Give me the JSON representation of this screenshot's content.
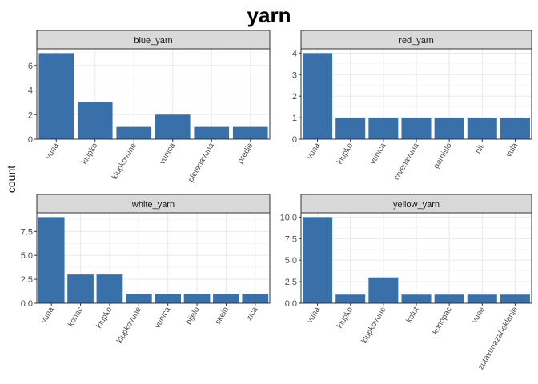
{
  "chart_data": {
    "type": "bar",
    "title": "yarn",
    "ylabel": "count",
    "xlabel": "",
    "bar_color": "#3A70AA",
    "panels": [
      {
        "name": "blue_yarn",
        "categories": [
          "vuna",
          "klupko",
          "klupkovune",
          "vunica",
          "pletenavuna",
          "predje"
        ],
        "values": [
          7,
          3,
          1,
          2,
          1,
          1
        ],
        "ylim": [
          0,
          7.35
        ],
        "yticks": [
          0,
          2,
          4,
          6
        ],
        "ytick_labels": [
          "0",
          "2",
          "4",
          "6"
        ]
      },
      {
        "name": "red_yarn",
        "categories": [
          "vuna",
          "klupko",
          "vunica",
          "crvenavuna",
          "garnislo",
          "nit.",
          "vula"
        ],
        "values": [
          4,
          1,
          1,
          1,
          1,
          1,
          1
        ],
        "ylim": [
          0,
          4.2
        ],
        "yticks": [
          0,
          1,
          2,
          3,
          4
        ],
        "ytick_labels": [
          "0",
          "1",
          "2",
          "3",
          "4"
        ]
      },
      {
        "name": "white_yarn",
        "categories": [
          "vuna",
          "konac",
          "klupko",
          "klupkovune",
          "vunica",
          "bijelo",
          "skein",
          "zica"
        ],
        "values": [
          9,
          3,
          3,
          1,
          1,
          1,
          1,
          1
        ],
        "ylim": [
          0,
          9.45
        ],
        "yticks": [
          0,
          2.5,
          5,
          7.5
        ],
        "ytick_labels": [
          "0.0",
          "2.5",
          "5.0",
          "7.5"
        ]
      },
      {
        "name": "yellow_yarn",
        "categories": [
          "vuna",
          "klupko",
          "klupkovune",
          "kolut",
          "konopac",
          "vune",
          "zutavunazaheklanje"
        ],
        "values": [
          10,
          1,
          3,
          1,
          1,
          1,
          1
        ],
        "ylim": [
          0,
          10.5
        ],
        "yticks": [
          0,
          2.5,
          5,
          7.5,
          10
        ],
        "ytick_labels": [
          "0.0",
          "2.5",
          "5.0",
          "7.5",
          "10.0"
        ]
      }
    ],
    "grid": true,
    "legend": "none"
  }
}
